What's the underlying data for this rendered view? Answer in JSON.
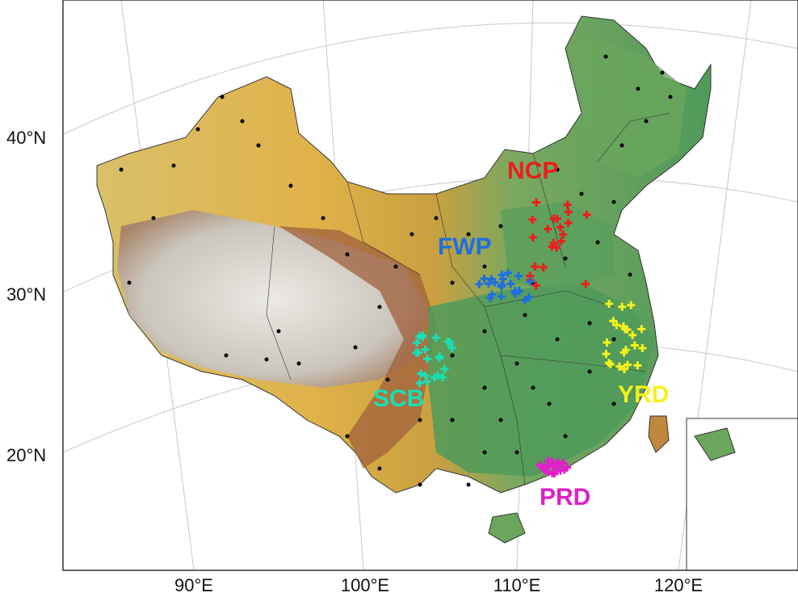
{
  "map": {
    "lat_labels": [
      "40°N",
      "30°N",
      "20°N"
    ],
    "lon_labels": [
      "90°E",
      "100°E",
      "110°E",
      "120°E"
    ],
    "regions": [
      {
        "label": "NCP",
        "color": "#ee1c1c"
      },
      {
        "label": "FWP",
        "color": "#1f6fe0"
      },
      {
        "label": "SCB",
        "color": "#19e0b4"
      },
      {
        "label": "YRD",
        "color": "#f5f01a"
      },
      {
        "label": "PRD",
        "color": "#e020c8"
      }
    ]
  }
}
